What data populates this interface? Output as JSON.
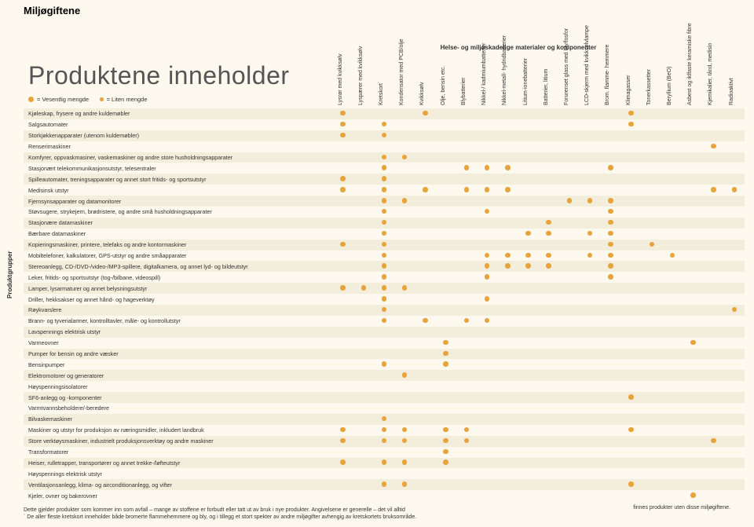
{
  "page_title": "Miljøgiftene",
  "section_title": "Helse- og miljøskadelige materialer og komponenter",
  "main_heading": "Produktene inneholder",
  "legend": {
    "big": "= Vesentlig mengde",
    "small": "= Liten mengde"
  },
  "ylabel": "Produktgrupper",
  "columns": [
    "Lysrør med kvikksølv",
    "Lyspærer med kvikksølv",
    "Kretskort`",
    "Kondensator med PCB/olje",
    "Kvikksølv",
    "Olje, bensin etc.",
    "Blybatterier",
    "Nikkel-/ kadmiumbatterier",
    "Nikkel-metall- hydridbatterier",
    "Litium-ionebatterier",
    "Batterier, litium",
    "Forurenset glass med bly/fosfor",
    "LCD-skjerm med kvikksølvlampe",
    "Brom. flamme- hemmere",
    "Klimagasser",
    "Tonerkassetter",
    "Beryllium (BeO)",
    "Asbest og ildfaste keramiske fibre",
    "Kjemikalier, tånd, medisin",
    "Radioaktivt"
  ],
  "rows": [
    {
      "label": "Kjøleskap, frysere og andre kuldemøbler",
      "v": [
        1,
        0,
        0,
        0,
        1,
        0,
        0,
        0,
        0,
        0,
        0,
        0,
        0,
        0,
        1,
        0,
        0,
        0,
        0,
        0
      ]
    },
    {
      "label": "Salgsautomater",
      "v": [
        1,
        0,
        1,
        0,
        0,
        0,
        0,
        0,
        0,
        0,
        0,
        0,
        0,
        0,
        1,
        0,
        0,
        0,
        0,
        0
      ]
    },
    {
      "label": "Storkjøkkenapparater (utenom kuldemøbler)",
      "v": [
        1,
        0,
        1,
        0,
        0,
        0,
        0,
        0,
        0,
        0,
        0,
        0,
        0,
        0,
        0,
        0,
        0,
        0,
        0,
        0
      ]
    },
    {
      "label": "Renserimaskiner",
      "v": [
        0,
        0,
        0,
        0,
        0,
        0,
        0,
        0,
        0,
        0,
        0,
        0,
        0,
        0,
        0,
        0,
        0,
        0,
        1,
        0
      ]
    },
    {
      "label": "Komfyrer, oppvaskmasiner, vaskemaskiner og andre store husholdningsapparater",
      "v": [
        0,
        0,
        1,
        1,
        0,
        0,
        0,
        0,
        0,
        0,
        0,
        0,
        0,
        0,
        0,
        0,
        0,
        0,
        0,
        0
      ]
    },
    {
      "label": "Stasjonært telekommunikasjonsutstyr, telesentraler",
      "v": [
        0,
        0,
        1,
        0,
        0,
        0,
        1,
        1,
        1,
        0,
        0,
        0,
        0,
        1,
        0,
        0,
        0,
        0,
        0,
        0
      ]
    },
    {
      "label": "Spilleautomater, treningsapparater og annet stort fritids- og sportsutstyr",
      "v": [
        1,
        0,
        1,
        0,
        0,
        0,
        0,
        0,
        0,
        0,
        0,
        0,
        0,
        0,
        0,
        0,
        0,
        0,
        0,
        0
      ]
    },
    {
      "label": "Medisinsk utstyr",
      "v": [
        1,
        0,
        1,
        0,
        1,
        0,
        1,
        1,
        1,
        0,
        0,
        0,
        0,
        0,
        0,
        0,
        0,
        0,
        1,
        1
      ]
    },
    {
      "label": "Fjernsynsapparater og datamonitorer",
      "v": [
        0,
        0,
        1,
        1,
        0,
        0,
        0,
        0,
        0,
        0,
        0,
        1,
        1,
        1,
        0,
        0,
        0,
        0,
        0,
        0
      ]
    },
    {
      "label": "Støvsugere, strykejern, brødristere, og andre små husholdningsapparater",
      "v": [
        0,
        0,
        1,
        0,
        0,
        0,
        0,
        1,
        0,
        0,
        0,
        0,
        0,
        1,
        0,
        0,
        0,
        0,
        0,
        0
      ]
    },
    {
      "label": "Stasjonære datamaskiner",
      "v": [
        0,
        0,
        1,
        0,
        0,
        0,
        0,
        0,
        0,
        0,
        1,
        0,
        0,
        1,
        0,
        0,
        0,
        0,
        0,
        0
      ]
    },
    {
      "label": "Bærbare datamaskiner",
      "v": [
        0,
        0,
        1,
        0,
        0,
        0,
        0,
        0,
        0,
        1,
        1,
        0,
        1,
        1,
        0,
        0,
        0,
        0,
        0,
        0
      ]
    },
    {
      "label": "Kopieringsmaskiner, printere, telefaks og andre kontormaskiner",
      "v": [
        1,
        0,
        1,
        0,
        0,
        0,
        0,
        0,
        0,
        0,
        0,
        0,
        0,
        1,
        0,
        1,
        0,
        0,
        0,
        0
      ]
    },
    {
      "label": "Mobiltelefoner, kalkulatorer, GPS-utstyr og andre småapparater",
      "v": [
        0,
        0,
        1,
        0,
        0,
        0,
        0,
        1,
        1,
        1,
        1,
        0,
        1,
        1,
        0,
        0,
        1,
        0,
        0,
        0
      ]
    },
    {
      "label": "Stereoanlegg, CD-/DVD-/video-/MP3-spillere, digitalkamera, og annet lyd- og bildeutstyr",
      "v": [
        0,
        0,
        1,
        0,
        0,
        0,
        0,
        1,
        1,
        1,
        1,
        0,
        0,
        1,
        0,
        0,
        0,
        0,
        0,
        0
      ]
    },
    {
      "label": "Leker, fritids- og sportsutstyr (tog-/bilbane, videospill)",
      "v": [
        0,
        0,
        1,
        0,
        0,
        0,
        0,
        1,
        0,
        0,
        0,
        0,
        0,
        1,
        0,
        0,
        0,
        0,
        0,
        0
      ]
    },
    {
      "label": "Lamper, lysarmaturer og annet belysningsutstyr",
      "v": [
        1,
        1,
        1,
        1,
        0,
        0,
        0,
        0,
        0,
        0,
        0,
        0,
        0,
        0,
        0,
        0,
        0,
        0,
        0,
        0
      ]
    },
    {
      "label": "Driller, hekksakser og annet hånd- og hageverktøy",
      "v": [
        0,
        0,
        1,
        0,
        0,
        0,
        0,
        1,
        0,
        0,
        0,
        0,
        0,
        0,
        0,
        0,
        0,
        0,
        0,
        0
      ]
    },
    {
      "label": "Røykvarslere",
      "v": [
        0,
        0,
        1,
        0,
        0,
        0,
        0,
        0,
        0,
        0,
        0,
        0,
        0,
        0,
        0,
        0,
        0,
        0,
        0,
        1
      ]
    },
    {
      "label": "Brann- og tyverialarmer, kontrolltavler, måle- og kontrollutstyr",
      "v": [
        0,
        0,
        1,
        0,
        1,
        0,
        1,
        1,
        0,
        0,
        0,
        0,
        0,
        0,
        0,
        0,
        0,
        0,
        0,
        0
      ]
    },
    {
      "label": "Lavspennings elektrisk utstyr",
      "v": [
        0,
        0,
        0,
        0,
        0,
        0,
        0,
        0,
        0,
        0,
        0,
        0,
        0,
        0,
        0,
        0,
        0,
        0,
        0,
        0
      ]
    },
    {
      "label": "Varmeovner",
      "v": [
        0,
        0,
        0,
        0,
        0,
        1,
        0,
        0,
        0,
        0,
        0,
        0,
        0,
        0,
        0,
        0,
        0,
        1,
        0,
        0
      ]
    },
    {
      "label": "Pumper for bensin og andre væsker",
      "v": [
        0,
        0,
        0,
        0,
        0,
        1,
        0,
        0,
        0,
        0,
        0,
        0,
        0,
        0,
        0,
        0,
        0,
        0,
        0,
        0
      ]
    },
    {
      "label": "Bensinpumper",
      "v": [
        0,
        0,
        1,
        0,
        0,
        1,
        0,
        0,
        0,
        0,
        0,
        0,
        0,
        0,
        0,
        0,
        0,
        0,
        0,
        0
      ]
    },
    {
      "label": "Elektromotorer og generatorer",
      "v": [
        0,
        0,
        0,
        1,
        0,
        0,
        0,
        0,
        0,
        0,
        0,
        0,
        0,
        0,
        0,
        0,
        0,
        0,
        0,
        0
      ]
    },
    {
      "label": "Høyspenningsisolatorer",
      "v": [
        0,
        0,
        0,
        0,
        0,
        0,
        0,
        0,
        0,
        0,
        0,
        0,
        0,
        0,
        0,
        0,
        0,
        0,
        0,
        0
      ]
    },
    {
      "label": "SF6-anlegg og -komponenter",
      "v": [
        0,
        0,
        0,
        0,
        0,
        0,
        0,
        0,
        0,
        0,
        0,
        0,
        0,
        0,
        1,
        0,
        0,
        0,
        0,
        0
      ]
    },
    {
      "label": "Varmtvannsbeholdere/-beredere",
      "v": [
        0,
        0,
        0,
        0,
        0,
        0,
        0,
        0,
        0,
        0,
        0,
        0,
        0,
        0,
        0,
        0,
        0,
        0,
        0,
        0
      ]
    },
    {
      "label": "Bilvaskemaskiner",
      "v": [
        0,
        0,
        1,
        0,
        0,
        0,
        0,
        0,
        0,
        0,
        0,
        0,
        0,
        0,
        0,
        0,
        0,
        0,
        0,
        0
      ]
    },
    {
      "label": "Maskiner og utstyr for produksjon av næringsmidler, inkludert landbruk",
      "v": [
        1,
        0,
        1,
        1,
        0,
        1,
        1,
        0,
        0,
        0,
        0,
        0,
        0,
        0,
        1,
        0,
        0,
        0,
        0,
        0
      ]
    },
    {
      "label": "Store verktøysmaskiner, industrielt produksjonsverktøy og andre maskiner",
      "v": [
        1,
        0,
        1,
        1,
        0,
        1,
        1,
        0,
        0,
        0,
        0,
        0,
        0,
        0,
        0,
        0,
        0,
        0,
        1,
        0
      ]
    },
    {
      "label": "Transformatorer",
      "v": [
        0,
        0,
        0,
        0,
        0,
        1,
        0,
        0,
        0,
        0,
        0,
        0,
        0,
        0,
        0,
        0,
        0,
        0,
        0,
        0
      ]
    },
    {
      "label": "Heiser, rulletrapper, transportører og annet trekke-/løfteutstyr",
      "v": [
        1,
        0,
        1,
        1,
        0,
        1,
        0,
        0,
        0,
        0,
        0,
        0,
        0,
        0,
        0,
        0,
        0,
        0,
        0,
        0
      ]
    },
    {
      "label": "Høyspennings elektrisk utstyr",
      "v": [
        0,
        0,
        0,
        0,
        0,
        0,
        0,
        0,
        0,
        0,
        0,
        0,
        0,
        0,
        0,
        0,
        0,
        0,
        0,
        0
      ]
    },
    {
      "label": "Ventilasjonsanlegg, klima- og airconditionanlegg, og vifter",
      "v": [
        0,
        0,
        1,
        1,
        0,
        0,
        0,
        0,
        0,
        0,
        0,
        0,
        0,
        0,
        1,
        0,
        0,
        0,
        0,
        0
      ]
    },
    {
      "label": "Kjeler, ovner og bakerovner",
      "v": [
        0,
        0,
        0,
        0,
        0,
        0,
        0,
        0,
        0,
        0,
        0,
        0,
        0,
        0,
        0,
        0,
        0,
        1,
        0,
        0
      ]
    }
  ],
  "footnote_main": "Dette gjelder produkter som kommer inn som avfall – mange av stoffene er forbudt eller tatt ut av bruk i nye produkter. Angivelsene er generelle – det vil alltid",
  "footnote_line2": "` De aller fleste kretskort inneholder både bromerte flammehemmere og bly, og i tillegg et stort spekter av andre miljøgifter avhengig av kretskortets bruksområde.",
  "footnote_right": "finnes produkter uten disse miljøgiftene."
}
